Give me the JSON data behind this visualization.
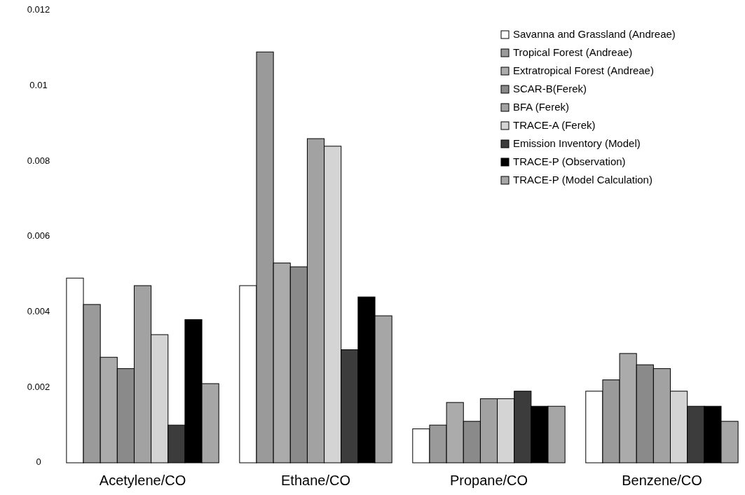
{
  "chart_data": {
    "type": "bar",
    "categories": [
      "Acetylene/CO",
      "Ethane/CO",
      "Propane/CO",
      "Benzene/CO"
    ],
    "series": [
      {
        "name": "Savanna and Grassland  (Andreae)",
        "color": "#ffffff",
        "values": [
          0.0049,
          0.0047,
          0.0009,
          0.0019
        ]
      },
      {
        "name": "Tropical Forest (Andreae)",
        "color": "#9a9a9a",
        "values": [
          0.0042,
          0.0109,
          0.001,
          0.0022
        ]
      },
      {
        "name": "Extratropical Forest (Andreae)",
        "color": "#ababab",
        "values": [
          0.0028,
          0.0053,
          0.0016,
          0.0029
        ]
      },
      {
        "name": "SCAR-B(Ferek)",
        "color": "#8a8a8a",
        "values": [
          0.0025,
          0.0052,
          0.0011,
          0.0026
        ]
      },
      {
        "name": "BFA (Ferek)",
        "color": "#a2a2a2",
        "values": [
          0.0047,
          0.0086,
          0.0017,
          0.0025
        ]
      },
      {
        "name": "TRACE-A (Ferek)",
        "color": "#d4d4d4",
        "values": [
          0.0034,
          0.0084,
          0.0017,
          0.0019
        ]
      },
      {
        "name": "Emission Inventory (Model)",
        "color": "#3c3c3c",
        "values": [
          0.001,
          0.003,
          0.0019,
          0.0015
        ]
      },
      {
        "name": "TRACE-P (Observation)",
        "color": "#000000",
        "values": [
          0.0038,
          0.0044,
          0.0015,
          0.0015
        ]
      },
      {
        "name": "TRACE-P (Model Calculation)",
        "color": "#a6a6a6",
        "values": [
          0.0021,
          0.0039,
          0.0015,
          0.0011
        ]
      }
    ],
    "ylim": [
      0,
      0.012
    ],
    "yticks": [
      0,
      0.002,
      0.004,
      0.006,
      0.008,
      0.01,
      0.012
    ],
    "legend": "top right"
  }
}
